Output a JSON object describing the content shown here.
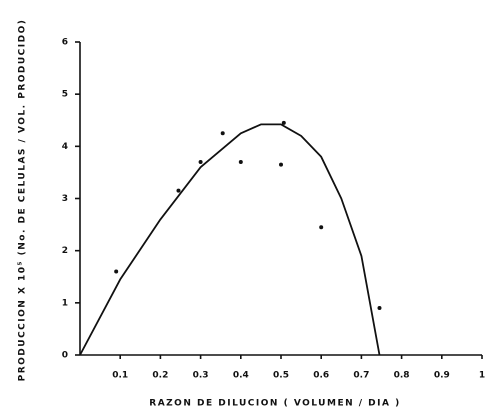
{
  "chart_data": {
    "type": "scatter",
    "x_label": "RAZON DE DILUCION ( VOLUMEN / DIA )",
    "y_label": "PRODUCCION X 10⁵ (No. DE CELULAS / VOL. PRODUCIDO)",
    "xlim": [
      0,
      1
    ],
    "ylim": [
      0,
      6
    ],
    "xticks": [
      0.1,
      0.2,
      0.3,
      0.4,
      0.5,
      0.6,
      0.7,
      0.8,
      0.9,
      1
    ],
    "yticks": [
      0,
      1,
      2,
      3,
      4,
      5,
      6
    ],
    "series": [
      {
        "type": "scatter",
        "color": "#111111",
        "x": [
          0.09,
          0.245,
          0.3,
          0.355,
          0.4,
          0.5,
          0.507,
          0.6,
          0.745
        ],
        "values": [
          1.6,
          3.15,
          3.7,
          4.25,
          3.7,
          3.65,
          4.45,
          2.45,
          0.9
        ]
      },
      {
        "type": "line",
        "color": "#111111",
        "x": [
          0,
          0.1,
          0.2,
          0.3,
          0.4,
          0.45,
          0.5,
          0.55,
          0.6,
          0.65,
          0.7,
          0.745
        ],
        "values": [
          0,
          1.45,
          2.6,
          3.6,
          4.25,
          4.42,
          4.42,
          4.2,
          3.8,
          3.0,
          1.9,
          0
        ]
      }
    ]
  }
}
